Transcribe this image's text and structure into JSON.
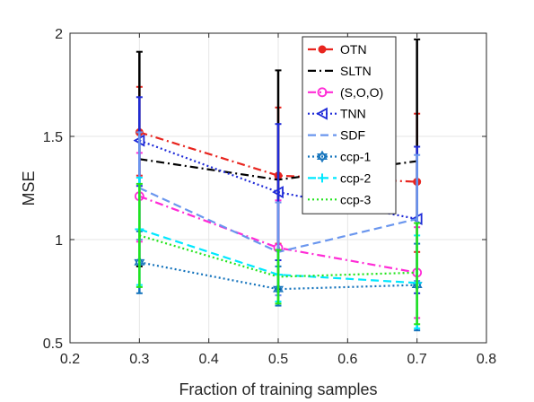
{
  "chart_data": {
    "type": "line",
    "xlabel": "Fraction of training samples",
    "ylabel": "MSE",
    "xlim": [
      0.2,
      0.8
    ],
    "ylim": [
      0.5,
      2
    ],
    "xticks": [
      "0.2",
      "0.3",
      "0.4",
      "0.5",
      "0.6",
      "0.7",
      "0.8"
    ],
    "yticks": [
      "0.5",
      "1",
      "1.5",
      "2"
    ],
    "grid": true,
    "legend_position": "top-right",
    "x": [
      0.3,
      0.5,
      0.7
    ],
    "series": [
      {
        "name": "OTN",
        "color": "#e8251f",
        "dash": "dashdot",
        "marker": "dot",
        "values": [
          1.52,
          1.31,
          1.28
        ],
        "err_low": [
          1.31,
          0.98,
          0.94
        ],
        "err_high": [
          1.74,
          1.64,
          1.61
        ]
      },
      {
        "name": "SLTN",
        "color": "#000000",
        "dash": "dashdot",
        "marker": "none",
        "values": [
          1.39,
          1.29,
          1.38
        ],
        "err_low": [
          0.87,
          0.76,
          0.79
        ],
        "err_high": [
          1.91,
          1.82,
          1.97
        ]
      },
      {
        "name": "(S,O,O)",
        "color": "#ff2bd6",
        "dash": "dashdot",
        "marker": "circle",
        "values": [
          1.21,
          0.96,
          0.84
        ],
        "err_low": [
          0.99,
          0.73,
          0.62
        ],
        "err_high": [
          1.42,
          1.19,
          1.06
        ]
      },
      {
        "name": "TNN",
        "color": "#1f2bd8",
        "dash": "dotted",
        "marker": "triangle-left",
        "values": [
          1.48,
          1.23,
          1.1
        ],
        "err_low": [
          1.26,
          0.9,
          0.74
        ],
        "err_high": [
          1.69,
          1.56,
          1.45
        ]
      },
      {
        "name": "SDF",
        "color": "#6a96ee",
        "dash": "dashed",
        "marker": "none",
        "values": [
          1.25,
          0.94,
          1.1
        ],
        "err_low": [
          1.0,
          0.73,
          0.8
        ],
        "err_high": [
          1.52,
          1.18,
          1.41
        ]
      },
      {
        "name": "ccp-1",
        "color": "#1473bc",
        "dash": "dotted",
        "marker": "hexagram",
        "values": [
          0.89,
          0.76,
          0.78
        ],
        "err_low": [
          0.74,
          0.68,
          0.56
        ],
        "err_high": [
          1.04,
          0.87,
          0.98
        ]
      },
      {
        "name": "ccp-2",
        "color": "#00e8ff",
        "dash": "dashed",
        "marker": "plus",
        "values": [
          1.05,
          0.83,
          0.79
        ],
        "err_low": [
          0.78,
          0.7,
          0.57
        ],
        "err_high": [
          1.3,
          0.95,
          1.02
        ]
      },
      {
        "name": "ccp-3",
        "color": "#22e41b",
        "dash": "dotted",
        "marker": "none",
        "values": [
          1.02,
          0.82,
          0.84
        ],
        "err_low": [
          0.77,
          0.69,
          0.59
        ],
        "err_high": [
          1.27,
          0.95,
          1.08
        ]
      }
    ]
  }
}
